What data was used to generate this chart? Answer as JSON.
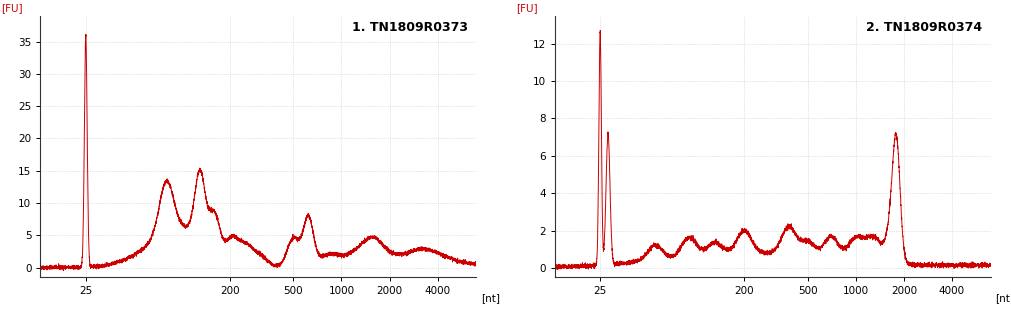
{
  "plot1": {
    "title": "1. TN1809R0373",
    "ylabel": "[FU]",
    "xlabel": "[nt]",
    "xticks": [
      25,
      200,
      500,
      1000,
      2000,
      4000
    ],
    "yticks": [
      0,
      5,
      10,
      15,
      20,
      25,
      30,
      35
    ],
    "ylim": [
      -1.5,
      39
    ],
    "xlim_log": [
      13,
      7000
    ],
    "line_color": "#cc0000"
  },
  "plot2": {
    "title": "2. TN1809R0374",
    "ylabel": "[FU]",
    "xlabel": "[nt]",
    "xticks": [
      25,
      200,
      500,
      1000,
      2000,
      4000
    ],
    "yticks": [
      0,
      2,
      4,
      6,
      8,
      10,
      12
    ],
    "ylim": [
      -0.5,
      13.5
    ],
    "xlim_log": [
      13,
      7000
    ],
    "line_color": "#cc0000"
  },
  "bg_color": "#ffffff",
  "grid_color": "#c8c8c8",
  "axis_color": "#333333"
}
